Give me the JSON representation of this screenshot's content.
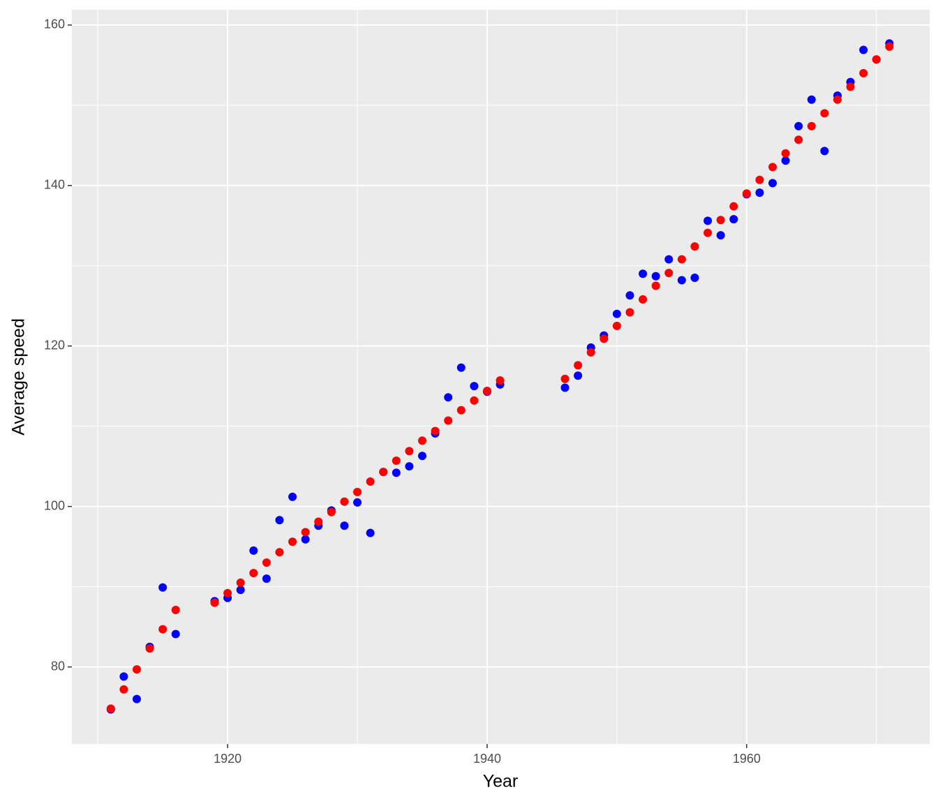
{
  "chart_data": {
    "type": "scatter",
    "x_label": "Year",
    "y_label": "Average speed",
    "x": [
      1911,
      1912,
      1913,
      1914,
      1915,
      1916,
      1919,
      1920,
      1921,
      1922,
      1923,
      1924,
      1925,
      1926,
      1927,
      1928,
      1929,
      1930,
      1931,
      1932,
      1933,
      1934,
      1935,
      1936,
      1937,
      1938,
      1939,
      1940,
      1941,
      1946,
      1947,
      1948,
      1949,
      1950,
      1951,
      1952,
      1953,
      1954,
      1955,
      1956,
      1957,
      1958,
      1959,
      1960,
      1961,
      1962,
      1963,
      1964,
      1965,
      1966,
      1967,
      1968,
      1969,
      1970,
      1971
    ],
    "series": [
      {
        "color": "#0000ff",
        "values": [
          74.7,
          78.8,
          76.0,
          82.5,
          89.9,
          84.1,
          88.2,
          88.6,
          89.6,
          94.5,
          91.0,
          98.3,
          101.2,
          95.9,
          97.6,
          99.5,
          97.6,
          100.5,
          96.7,
          104.3,
          104.2,
          105.0,
          106.3,
          109.1,
          113.6,
          117.3,
          115.0,
          114.3,
          115.2,
          114.8,
          116.3,
          119.8,
          121.3,
          124.0,
          126.3,
          129.0,
          128.7,
          130.8,
          128.2,
          128.5,
          135.6,
          133.8,
          135.8,
          138.9,
          139.1,
          140.3,
          143.1,
          147.4,
          150.7,
          144.3,
          151.2,
          152.9,
          156.9,
          155.7,
          157.7
        ]
      },
      {
        "color": "#ff0000",
        "values": [
          74.8,
          77.2,
          79.7,
          82.3,
          84.7,
          87.1,
          88.0,
          89.2,
          90.5,
          91.7,
          93.0,
          94.3,
          95.6,
          96.8,
          98.1,
          99.3,
          100.6,
          101.8,
          103.1,
          104.3,
          105.7,
          106.9,
          108.2,
          109.4,
          110.7,
          112.0,
          113.2,
          114.4,
          115.7,
          115.9,
          117.6,
          119.2,
          120.9,
          122.5,
          124.2,
          125.8,
          127.5,
          129.1,
          130.8,
          132.4,
          134.1,
          135.7,
          137.4,
          139.0,
          140.7,
          142.3,
          144.0,
          145.7,
          147.4,
          149.0,
          150.7,
          152.3,
          154.0,
          155.7,
          157.3
        ]
      }
    ],
    "xlim": [
      1908,
      1974.1
    ],
    "ylim": [
      70.4,
      161.9
    ],
    "xticks": [
      1920,
      1940,
      1960
    ],
    "yticks": [
      80,
      100,
      120,
      140,
      160
    ],
    "x_minor_breaks": [
      1910,
      1930,
      1950,
      1970
    ],
    "y_minor_breaks": [
      90,
      110,
      130,
      150
    ],
    "grid": true,
    "panel_color": "#ebebeb"
  }
}
